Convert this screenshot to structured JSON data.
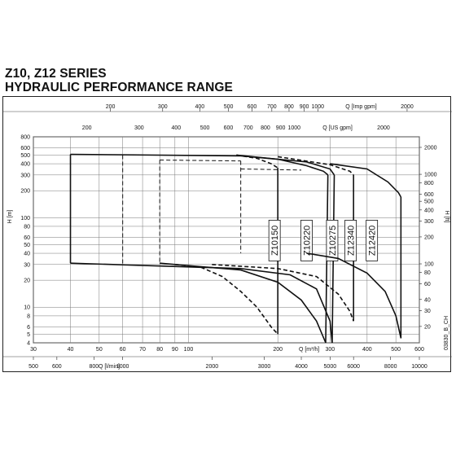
{
  "title": {
    "line1": "Z10, Z12 SERIES",
    "line2": "HYDRAULIC PERFORMANCE RANGE"
  },
  "chart_data": {
    "type": "line",
    "code": "03830_B_CH",
    "xlim_m3h": [
      30,
      600
    ],
    "ylim_m": [
      4,
      800
    ],
    "axes": {
      "q_m3h": {
        "label": "Q [m³/h]",
        "ticks": [
          30,
          40,
          50,
          60,
          70,
          80,
          90,
          100,
          200,
          300,
          400,
          500,
          600
        ]
      },
      "q_lmin": {
        "label": "Q [l/min]",
        "ticks": [
          500,
          600,
          800,
          1000,
          2000,
          3000,
          4000,
          5000,
          6000,
          8000,
          10000
        ]
      },
      "q_usgpm": {
        "label": "Q [US gpm]",
        "ticks": [
          200,
          300,
          400,
          500,
          600,
          700,
          800,
          900,
          1000,
          2000
        ]
      },
      "q_impgpm": {
        "label": "Q [Imp gpm]",
        "ticks": [
          200,
          300,
          400,
          500,
          600,
          700,
          800,
          900,
          1000,
          2000
        ]
      },
      "h_m": {
        "label": "H [m]",
        "ticks": [
          4,
          5,
          6,
          8,
          10,
          20,
          30,
          40,
          50,
          60,
          80,
          100,
          200,
          300,
          400,
          500,
          600,
          800
        ]
      },
      "h_ft": {
        "label": "H [ft]",
        "ticks": [
          20,
          30,
          40,
          60,
          80,
          100,
          200,
          300,
          400,
          500,
          600,
          800,
          1000,
          2000
        ]
      }
    },
    "series": [
      {
        "name": "Z10150",
        "label_at": {
          "q": 195,
          "h": 50
        },
        "upper": [
          [
            145,
            500
          ],
          [
            170,
            460
          ],
          [
            190,
            400
          ],
          [
            200,
            360
          ]
        ],
        "lower": [
          [
            90,
            30
          ],
          [
            110,
            28
          ],
          [
            130,
            22
          ],
          [
            150,
            15
          ],
          [
            170,
            10
          ],
          [
            190,
            6
          ],
          [
            200,
            5
          ]
        ]
      },
      {
        "name": "Z10220",
        "label_at": {
          "q": 250,
          "h": 50
        },
        "upper": [
          [
            145,
            500
          ],
          [
            200,
            450
          ],
          [
            250,
            380
          ],
          [
            285,
            330
          ],
          [
            295,
            300
          ]
        ],
        "lower": [
          [
            80,
            31
          ],
          [
            150,
            26
          ],
          [
            200,
            19
          ],
          [
            240,
            12
          ],
          [
            270,
            7
          ],
          [
            290,
            4
          ]
        ]
      },
      {
        "name": "Z10275",
        "label_at": {
          "q": 305,
          "h": 50
        },
        "upper": [
          [
            40,
            510
          ],
          [
            150,
            490
          ],
          [
            250,
            420
          ],
          [
            300,
            350
          ],
          [
            310,
            300
          ]
        ],
        "lower": [
          [
            40,
            31
          ],
          [
            150,
            27
          ],
          [
            220,
            23
          ],
          [
            270,
            16
          ],
          [
            300,
            7
          ],
          [
            305,
            4
          ]
        ]
      },
      {
        "name": "Z12340",
        "label_at": {
          "q": 352,
          "h": 50
        },
        "upper": [
          [
            200,
            480
          ],
          [
            300,
            390
          ],
          [
            350,
            330
          ],
          [
            360,
            300
          ]
        ],
        "lower": [
          [
            120,
            30
          ],
          [
            200,
            27
          ],
          [
            270,
            22
          ],
          [
            320,
            14
          ],
          [
            350,
            9
          ],
          [
            360,
            7
          ]
        ]
      },
      {
        "name": "Z12420",
        "label_at": {
          "q": 415,
          "h": 50
        },
        "upper": [
          [
            300,
            400
          ],
          [
            400,
            350
          ],
          [
            470,
            250
          ],
          [
            510,
            190
          ],
          [
            520,
            170
          ]
        ],
        "lower": [
          [
            250,
            40
          ],
          [
            320,
            35
          ],
          [
            400,
            24
          ],
          [
            460,
            15
          ],
          [
            500,
            8
          ],
          [
            520,
            4.5
          ]
        ]
      }
    ]
  }
}
